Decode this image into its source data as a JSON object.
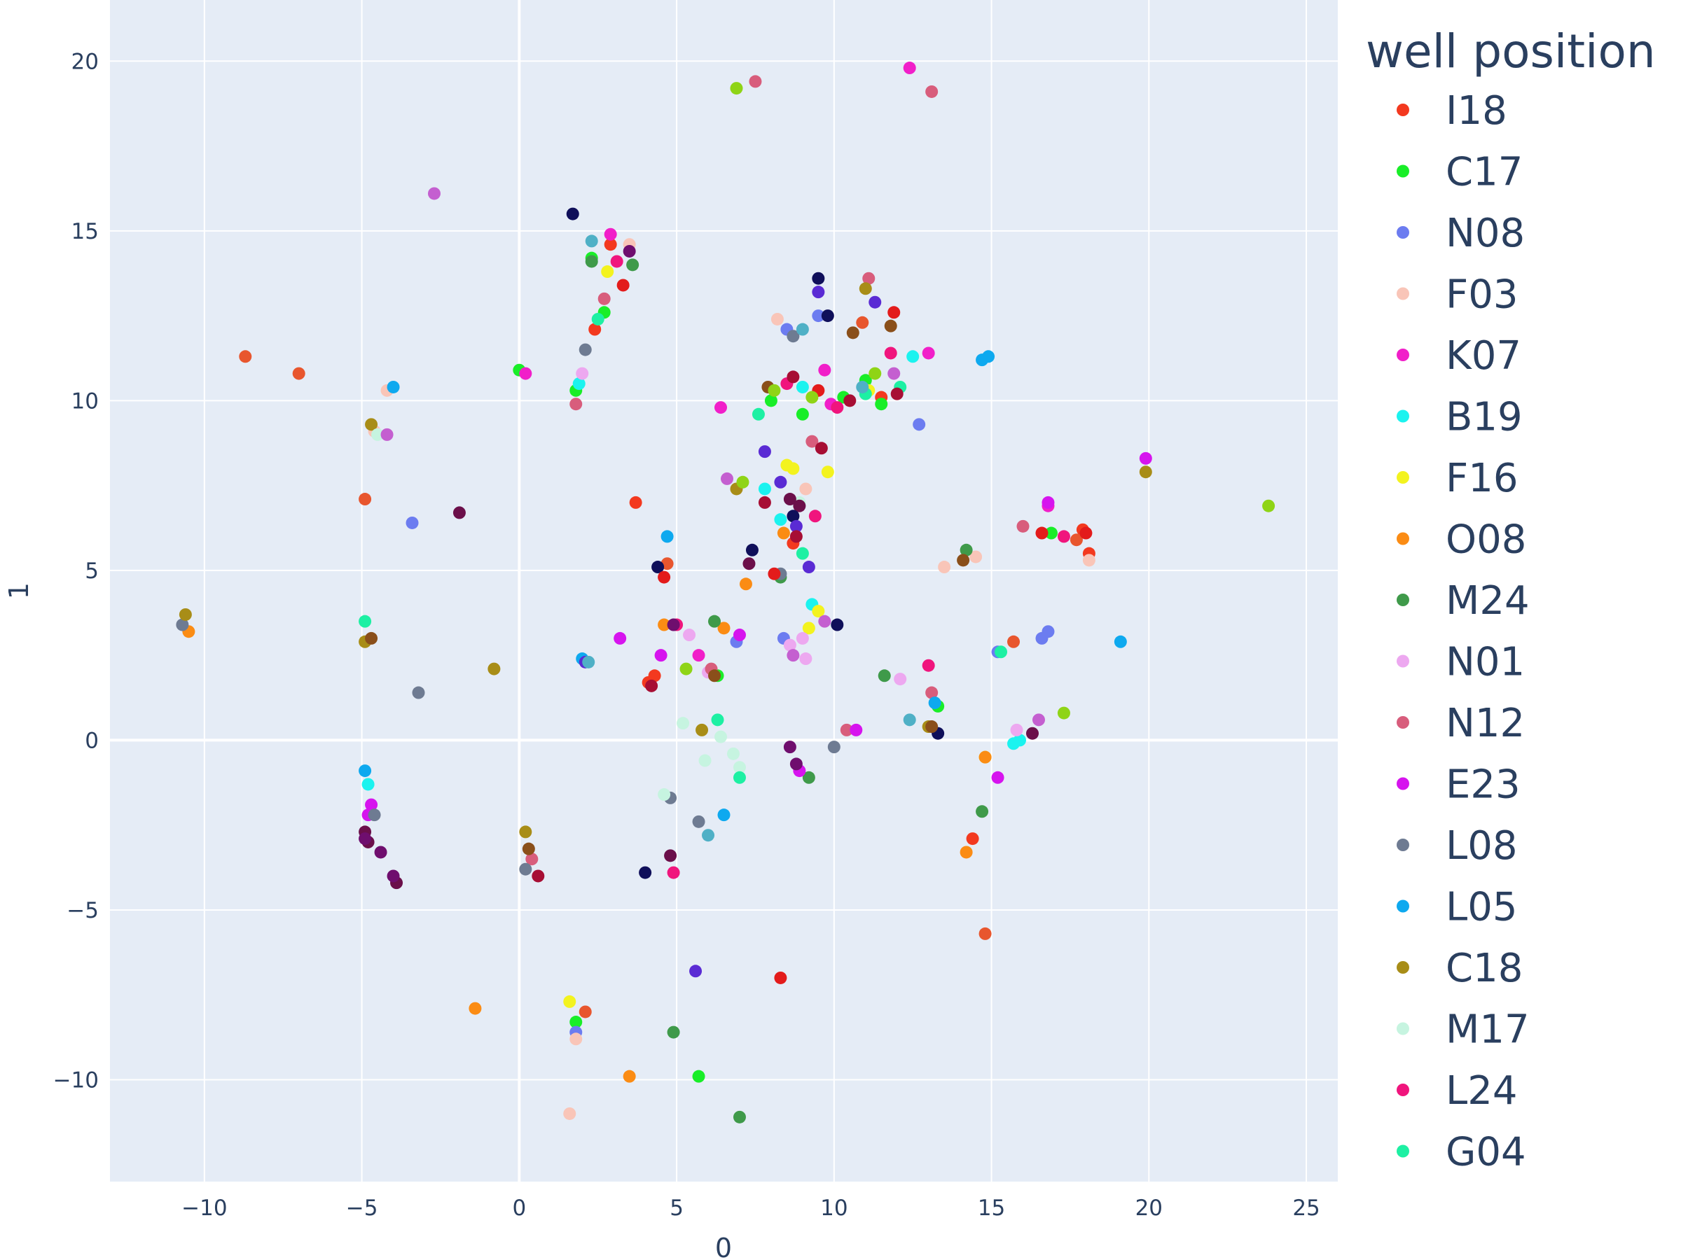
{
  "chart_data": {
    "type": "scatter",
    "xlabel": "0",
    "ylabel": "1",
    "xlim": [
      -13,
      26
    ],
    "ylim": [
      -13.0,
      21.8
    ],
    "x_ticks": [
      -10,
      -5,
      0,
      5,
      10,
      15,
      20,
      25
    ],
    "x_tick_labels": [
      "−10",
      "−5",
      "0",
      "5",
      "10",
      "15",
      "20",
      "25"
    ],
    "y_ticks": [
      -10,
      -5,
      0,
      5,
      10,
      15,
      20
    ],
    "y_tick_labels": [
      "−10",
      "−5",
      "0",
      "5",
      "10",
      "15",
      "20"
    ],
    "grid": true,
    "legend_title": "well position",
    "legend_position": "right",
    "series": [
      {
        "name": "I18",
        "color": "#f3391f",
        "points": [
          [
            3.7,
            7.0
          ],
          [
            18.1,
            5.5
          ],
          [
            17.9,
            6.2
          ],
          [
            4.1,
            1.7
          ],
          [
            4.3,
            1.9
          ],
          [
            14.4,
            -2.9
          ],
          [
            8.7,
            5.8
          ],
          [
            2.4,
            12.1
          ],
          [
            11.5,
            10.1
          ],
          [
            2.9,
            14.6
          ]
        ]
      },
      {
        "name": "C17",
        "color": "#19ee28",
        "points": [
          [
            0.0,
            10.9
          ],
          [
            2.3,
            14.2
          ],
          [
            1.8,
            10.3
          ],
          [
            16.9,
            6.1
          ],
          [
            13.3,
            1.0
          ],
          [
            6.3,
            1.9
          ],
          [
            9.0,
            9.6
          ],
          [
            11.0,
            10.6
          ],
          [
            1.8,
            -8.3
          ],
          [
            5.7,
            -9.9
          ],
          [
            2.7,
            12.6
          ],
          [
            8.0,
            10.0
          ],
          [
            10.3,
            10.1
          ],
          [
            11.5,
            9.9
          ]
        ]
      },
      {
        "name": "N08",
        "color": "#6c7cf0",
        "points": [
          [
            -3.4,
            6.4
          ],
          [
            8.5,
            12.1
          ],
          [
            16.8,
            3.2
          ],
          [
            15.2,
            2.6
          ],
          [
            1.8,
            -8.6
          ],
          [
            9.5,
            12.5
          ],
          [
            6.9,
            2.9
          ],
          [
            16.6,
            3.0
          ],
          [
            12.7,
            9.3
          ],
          [
            8.4,
            3.0
          ]
        ]
      },
      {
        "name": "F03",
        "color": "#f9c5b8",
        "points": [
          [
            1.6,
            -11.0
          ],
          [
            -4.2,
            10.3
          ],
          [
            18.1,
            5.3
          ],
          [
            8.2,
            12.4
          ],
          [
            3.5,
            14.6
          ],
          [
            13.5,
            5.1
          ],
          [
            9.1,
            7.4
          ],
          [
            1.8,
            -8.8
          ],
          [
            -4.6,
            9.1
          ],
          [
            14.5,
            5.4
          ]
        ]
      },
      {
        "name": "K07",
        "color": "#f11fc9",
        "points": [
          [
            12.4,
            19.8
          ],
          [
            0.2,
            10.8
          ],
          [
            13.0,
            11.4
          ],
          [
            2.9,
            14.9
          ],
          [
            6.4,
            9.8
          ],
          [
            9.9,
            9.9
          ],
          [
            9.7,
            10.9
          ],
          [
            16.8,
            6.9
          ],
          [
            5.7,
            2.5
          ]
        ]
      },
      {
        "name": "B19",
        "color": "#1bf3ef",
        "points": [
          [
            12.5,
            11.3
          ],
          [
            -4.8,
            -1.3
          ],
          [
            9.3,
            4.0
          ],
          [
            9.0,
            10.4
          ],
          [
            7.8,
            7.4
          ],
          [
            15.9,
            0.0
          ],
          [
            8.3,
            6.5
          ],
          [
            1.9,
            10.5
          ],
          [
            15.7,
            -0.1
          ]
        ]
      },
      {
        "name": "F16",
        "color": "#f3f31f",
        "points": [
          [
            9.2,
            3.3
          ],
          [
            9.5,
            3.8
          ],
          [
            8.7,
            8.0
          ],
          [
            9.8,
            7.9
          ],
          [
            1.6,
            -7.7
          ],
          [
            11.1,
            10.3
          ],
          [
            2.8,
            13.8
          ],
          [
            8.5,
            8.1
          ],
          [
            14.8,
            -0.5
          ]
        ]
      },
      {
        "name": "O08",
        "color": "#fb8c14",
        "points": [
          [
            -1.4,
            -7.9
          ],
          [
            3.5,
            -9.9
          ],
          [
            -10.5,
            3.2
          ],
          [
            14.2,
            -3.3
          ],
          [
            6.5,
            3.3
          ],
          [
            7.2,
            4.6
          ],
          [
            14.8,
            -0.5
          ],
          [
            8.4,
            6.1
          ],
          [
            4.6,
            3.4
          ]
        ]
      },
      {
        "name": "M24",
        "color": "#3f9a4a",
        "points": [
          [
            4.9,
            -8.6
          ],
          [
            7.0,
            -11.1
          ],
          [
            3.6,
            14.0
          ],
          [
            11.6,
            1.9
          ],
          [
            14.2,
            5.6
          ],
          [
            14.7,
            -2.1
          ],
          [
            9.2,
            -1.1
          ],
          [
            6.2,
            3.5
          ],
          [
            2.3,
            14.1
          ],
          [
            8.3,
            4.8
          ]
        ]
      },
      {
        "name": "N01",
        "color": "#eda8f0",
        "points": [
          [
            9.1,
            2.4
          ],
          [
            8.6,
            2.8
          ],
          [
            12.1,
            1.8
          ],
          [
            5.4,
            3.1
          ],
          [
            6.0,
            2.0
          ],
          [
            2.0,
            10.8
          ],
          [
            15.8,
            0.3
          ],
          [
            9.0,
            3.0
          ]
        ]
      },
      {
        "name": "N12",
        "color": "#d85d7c",
        "points": [
          [
            13.1,
            19.1
          ],
          [
            11.1,
            13.6
          ],
          [
            6.1,
            2.1
          ],
          [
            0.4,
            -3.5
          ],
          [
            13.1,
            1.4
          ],
          [
            2.7,
            13.0
          ],
          [
            9.3,
            8.8
          ],
          [
            1.8,
            9.9
          ],
          [
            7.5,
            19.4
          ],
          [
            16.0,
            6.3
          ],
          [
            10.4,
            0.3
          ]
        ]
      },
      {
        "name": "E23",
        "color": "#d614ee",
        "points": [
          [
            -4.7,
            -1.9
          ],
          [
            16.8,
            7.0
          ],
          [
            8.9,
            -0.9
          ],
          [
            3.2,
            3.0
          ],
          [
            19.9,
            8.3
          ],
          [
            15.2,
            -1.1
          ],
          [
            -4.8,
            -2.2
          ],
          [
            10.7,
            0.3
          ],
          [
            4.5,
            2.5
          ],
          [
            7.0,
            3.1
          ]
        ]
      },
      {
        "name": "L08",
        "color": "#6e7b92",
        "points": [
          [
            -3.2,
            1.4
          ],
          [
            8.7,
            11.9
          ],
          [
            0.2,
            -3.8
          ],
          [
            2.1,
            11.5
          ],
          [
            5.7,
            -2.4
          ],
          [
            -4.6,
            -2.2
          ],
          [
            8.3,
            4.9
          ],
          [
            10.0,
            -0.2
          ],
          [
            -10.7,
            3.4
          ],
          [
            4.8,
            -1.7
          ]
        ]
      },
      {
        "name": "L05",
        "color": "#0ea9ef",
        "points": [
          [
            19.1,
            2.9
          ],
          [
            -4.0,
            10.4
          ],
          [
            14.9,
            11.3
          ],
          [
            -4.9,
            -0.9
          ],
          [
            2.0,
            2.4
          ],
          [
            6.5,
            -2.2
          ],
          [
            13.2,
            1.1
          ],
          [
            14.7,
            11.2
          ],
          [
            4.7,
            6.0
          ]
        ]
      },
      {
        "name": "C18",
        "color": "#a88d17",
        "points": [
          [
            -0.8,
            2.1
          ],
          [
            -4.9,
            2.9
          ],
          [
            0.2,
            -2.7
          ],
          [
            6.9,
            7.4
          ],
          [
            19.9,
            7.9
          ],
          [
            -4.7,
            9.3
          ],
          [
            11.0,
            13.3
          ],
          [
            5.8,
            0.3
          ],
          [
            13.0,
            0.4
          ],
          [
            -10.6,
            3.7
          ]
        ]
      },
      {
        "name": "M17",
        "color": "#c6f4e0",
        "points": [
          [
            5.2,
            0.5
          ],
          [
            6.4,
            0.1
          ],
          [
            5.9,
            -0.6
          ],
          [
            7.0,
            -0.8
          ],
          [
            4.6,
            -1.6
          ],
          [
            6.8,
            -0.4
          ],
          [
            8.9,
            7.0
          ],
          [
            -4.5,
            9.0
          ]
        ]
      },
      {
        "name": "L24",
        "color": "#f0157d",
        "points": [
          [
            13.0,
            2.2
          ],
          [
            4.9,
            -3.9
          ],
          [
            10.1,
            9.8
          ],
          [
            11.8,
            11.4
          ],
          [
            5.0,
            3.4
          ],
          [
            17.3,
            6.0
          ],
          [
            3.1,
            14.1
          ],
          [
            8.5,
            10.5
          ],
          [
            9.4,
            6.6
          ]
        ]
      },
      {
        "name": "G04",
        "color": "#1df0a3",
        "points": [
          [
            -4.9,
            3.5
          ],
          [
            7.0,
            -1.1
          ],
          [
            9.0,
            5.5
          ],
          [
            12.1,
            10.4
          ],
          [
            11.0,
            10.2
          ],
          [
            6.3,
            0.6
          ],
          [
            2.5,
            12.4
          ],
          [
            7.6,
            9.6
          ],
          [
            15.3,
            2.6
          ]
        ]
      },
      {
        "name": "",
        "color": "#e8562e",
        "points": [
          [
            -8.7,
            11.3
          ],
          [
            -4.9,
            7.1
          ],
          [
            -7.0,
            10.8
          ],
          [
            14.8,
            -5.7
          ],
          [
            17.7,
            5.9
          ],
          [
            15.7,
            2.9
          ],
          [
            4.7,
            5.2
          ],
          [
            2.1,
            -8.0
          ],
          [
            10.9,
            12.3
          ]
        ]
      },
      {
        "name": "",
        "color": "#c45fd0",
        "points": [
          [
            -2.7,
            16.1
          ],
          [
            -4.2,
            9.0
          ],
          [
            8.7,
            2.5
          ],
          [
            6.6,
            7.7
          ],
          [
            11.9,
            10.8
          ],
          [
            9.7,
            3.5
          ],
          [
            16.5,
            0.6
          ]
        ]
      },
      {
        "name": "",
        "color": "#6b0f4a",
        "points": [
          [
            -1.9,
            6.7
          ],
          [
            -4.8,
            -3.0
          ],
          [
            -3.9,
            -4.2
          ],
          [
            4.8,
            -3.4
          ],
          [
            8.6,
            7.1
          ],
          [
            16.3,
            0.2
          ],
          [
            -4.9,
            -2.7
          ],
          [
            7.3,
            5.2
          ],
          [
            8.9,
            6.9
          ]
        ]
      },
      {
        "name": "",
        "color": "#0f0f5a",
        "points": [
          [
            9.5,
            13.6
          ],
          [
            1.7,
            15.5
          ],
          [
            4.4,
            5.1
          ],
          [
            10.1,
            3.4
          ],
          [
            13.3,
            0.2
          ],
          [
            7.4,
            5.6
          ],
          [
            8.7,
            6.6
          ],
          [
            4.0,
            -3.9
          ],
          [
            9.8,
            12.5
          ]
        ]
      },
      {
        "name": "",
        "color": "#5a2bd4",
        "points": [
          [
            5.6,
            -6.8
          ],
          [
            8.3,
            7.6
          ],
          [
            11.3,
            12.9
          ],
          [
            8.8,
            6.3
          ],
          [
            7.8,
            8.5
          ],
          [
            9.5,
            13.2
          ],
          [
            2.1,
            2.3
          ],
          [
            9.2,
            5.1
          ]
        ]
      },
      {
        "name": "",
        "color": "#e31b1b",
        "points": [
          [
            8.3,
            -7.0
          ],
          [
            4.6,
            4.8
          ],
          [
            9.5,
            10.3
          ],
          [
            11.9,
            12.6
          ],
          [
            16.6,
            6.1
          ],
          [
            8.1,
            4.9
          ],
          [
            3.3,
            13.4
          ],
          [
            18.0,
            6.1
          ]
        ]
      },
      {
        "name": "",
        "color": "#8a4f1a",
        "points": [
          [
            11.8,
            12.2
          ],
          [
            -4.7,
            3.0
          ],
          [
            6.2,
            1.9
          ],
          [
            10.6,
            12.0
          ],
          [
            0.3,
            -3.2
          ],
          [
            13.1,
            0.4
          ],
          [
            7.9,
            10.4
          ],
          [
            14.1,
            5.3
          ]
        ]
      },
      {
        "name": "",
        "color": "#8fd416",
        "points": [
          [
            23.8,
            6.9
          ],
          [
            6.9,
            19.2
          ],
          [
            17.3,
            0.8
          ],
          [
            7.1,
            7.6
          ],
          [
            5.3,
            2.1
          ],
          [
            8.1,
            10.3
          ],
          [
            9.3,
            10.1
          ],
          [
            11.3,
            10.8
          ]
        ]
      },
      {
        "name": "",
        "color": "#a70e34",
        "points": [
          [
            8.7,
            10.7
          ],
          [
            0.6,
            -4.0
          ],
          [
            9.6,
            8.6
          ],
          [
            7.8,
            7.0
          ],
          [
            12.0,
            10.2
          ],
          [
            10.5,
            10.0
          ],
          [
            4.2,
            1.6
          ],
          [
            8.8,
            6.0
          ]
        ]
      },
      {
        "name": "",
        "color": "#6f0e6e",
        "points": [
          [
            -4.9,
            -2.9
          ],
          [
            -4.4,
            -3.3
          ],
          [
            -4.0,
            -4.0
          ],
          [
            8.6,
            -0.2
          ],
          [
            8.8,
            -0.7
          ],
          [
            4.9,
            3.4
          ],
          [
            3.5,
            14.4
          ]
        ]
      },
      {
        "name": "",
        "color": "#4fb0c6",
        "points": [
          [
            2.3,
            14.7
          ],
          [
            9.0,
            12.1
          ],
          [
            10.9,
            10.4
          ],
          [
            12.4,
            0.6
          ],
          [
            6.0,
            -2.8
          ],
          [
            2.2,
            2.3
          ]
        ]
      }
    ]
  }
}
